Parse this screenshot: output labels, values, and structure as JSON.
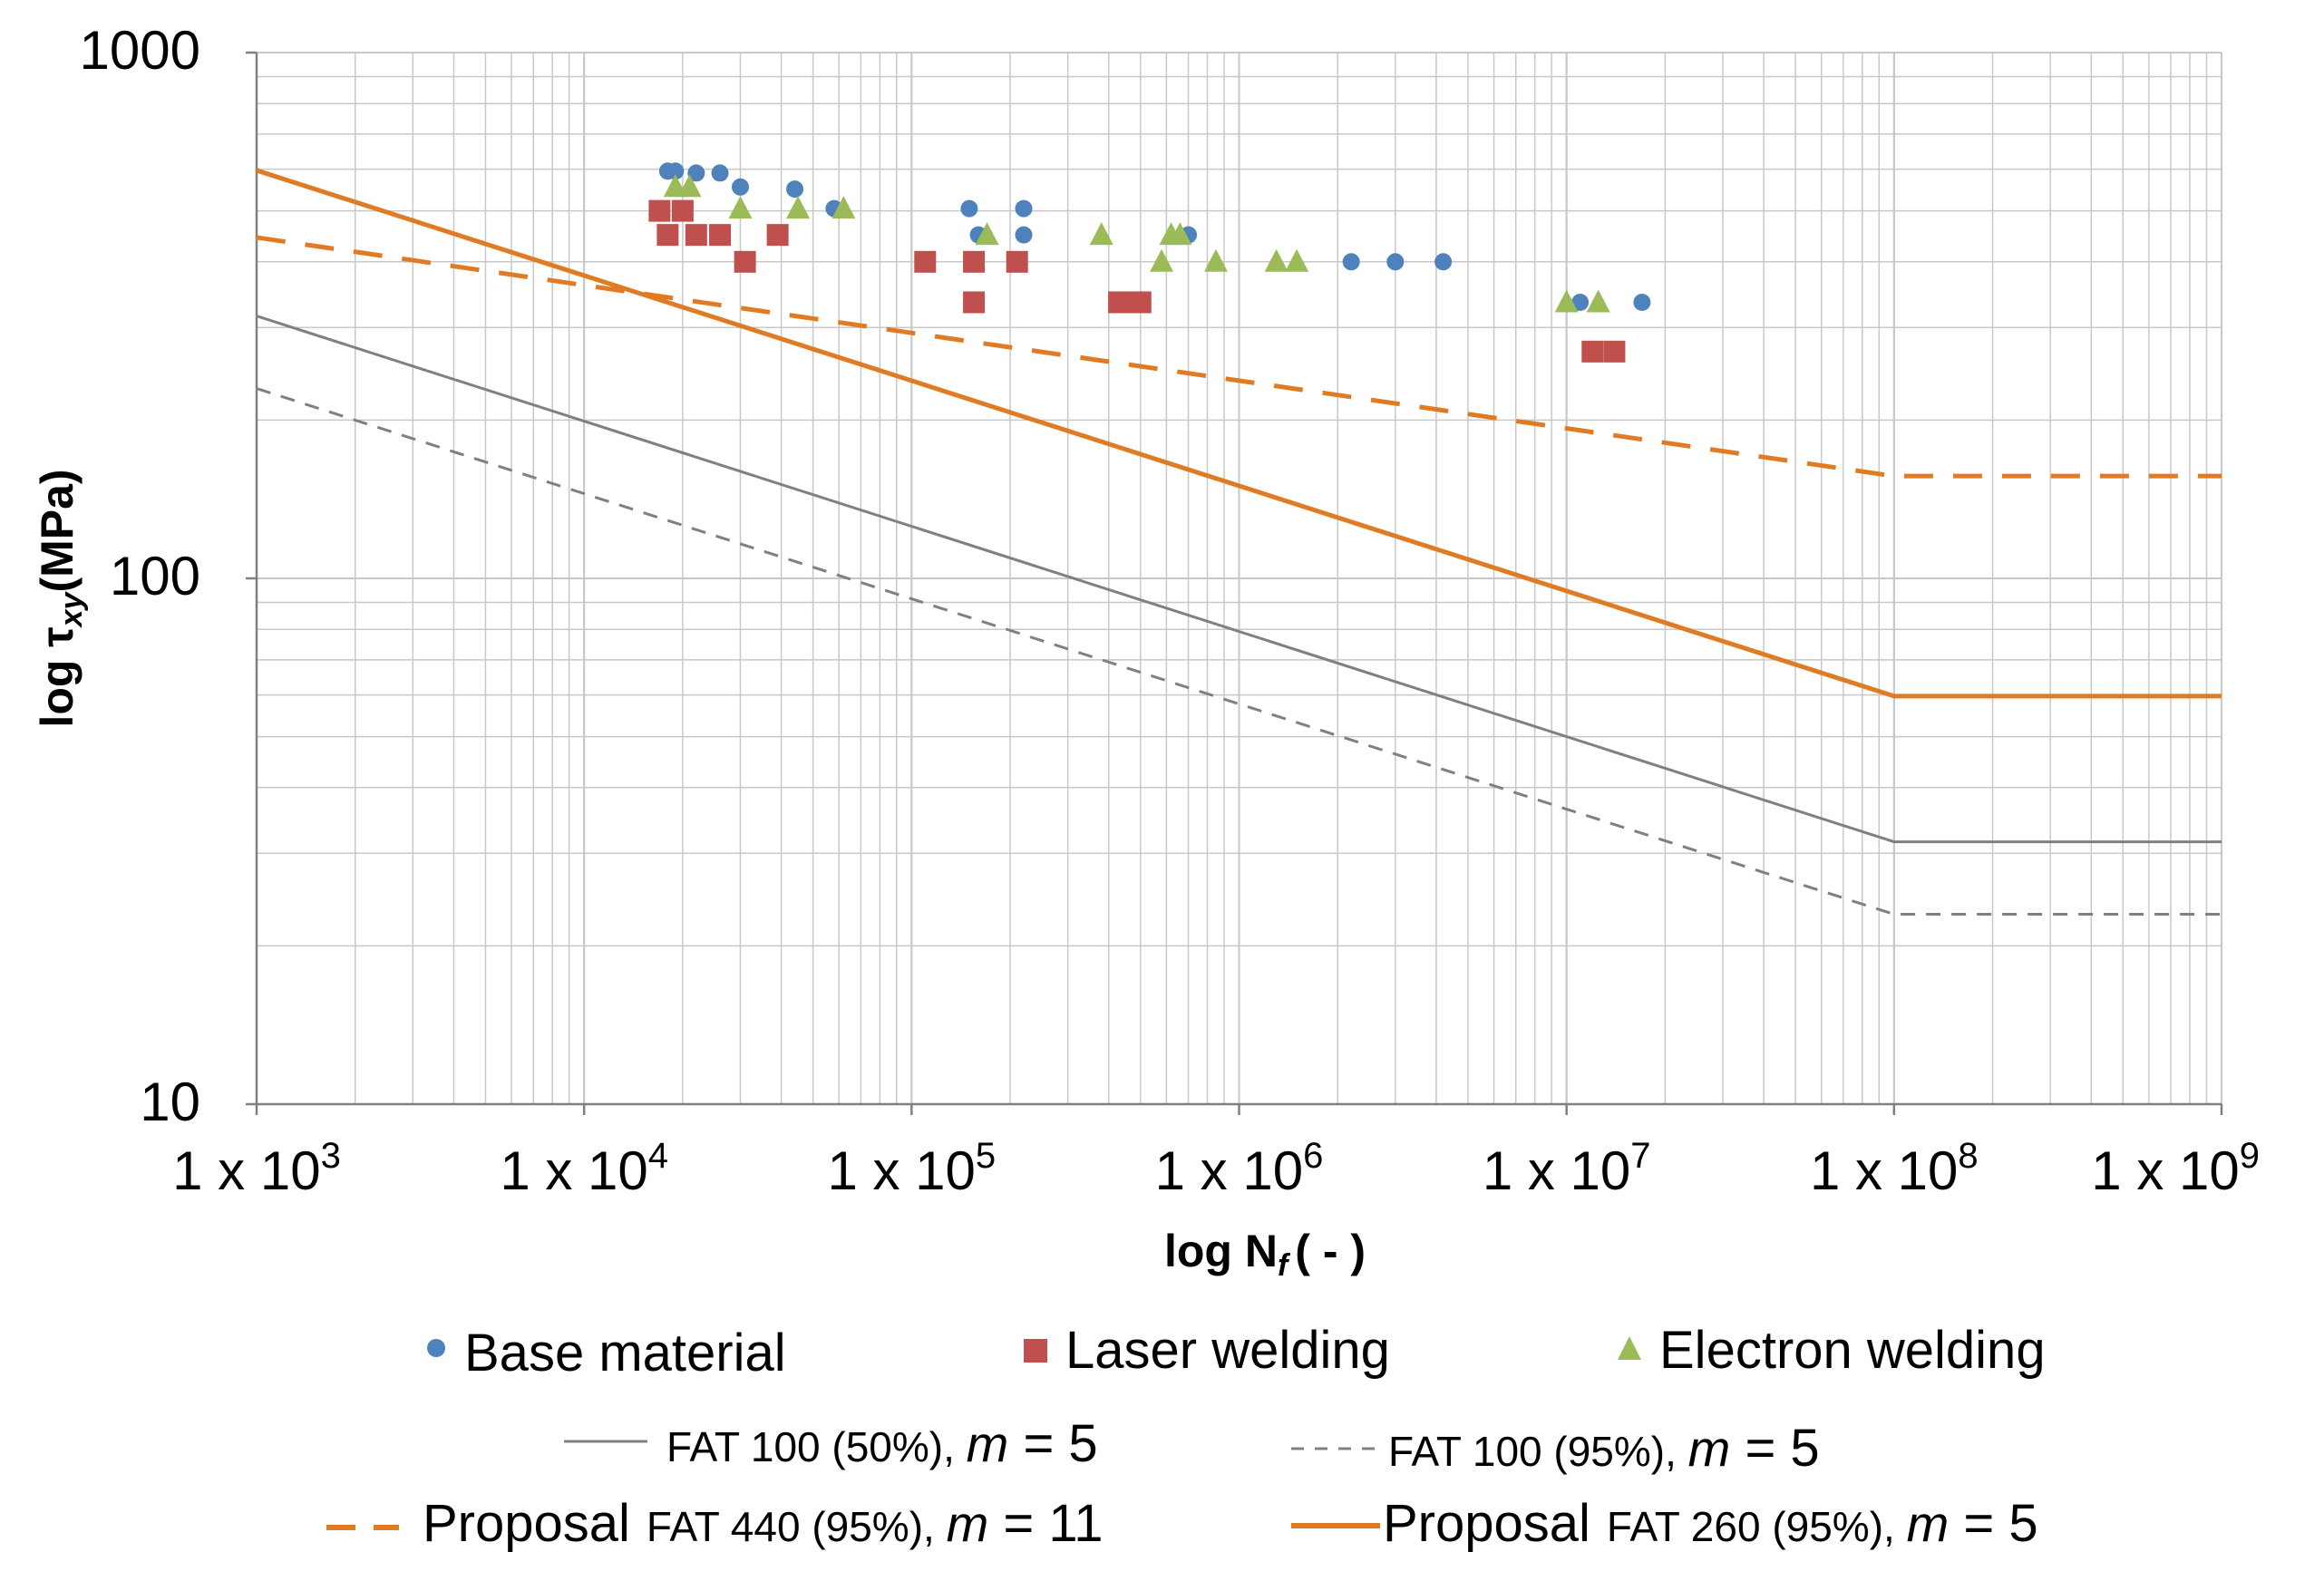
{
  "chart_data": {
    "type": "scatter",
    "xlabel": "log N",
    "xlabel_subscript": "f",
    "xlabel_suffix": "( - )",
    "ylabel": "log τ",
    "ylabel_subscript": "xy",
    "ylabel_suffix": "(MPa)",
    "x_scale": "log",
    "y_scale": "log",
    "xlim": [
      1000,
      1000000000
    ],
    "ylim": [
      10,
      1000
    ],
    "grid": true,
    "x_ticks": [
      {
        "value": 1000,
        "base": "1 x 10",
        "exp": "3"
      },
      {
        "value": 10000,
        "base": "1 x 10",
        "exp": "4"
      },
      {
        "value": 100000,
        "base": "1 x 10",
        "exp": "5"
      },
      {
        "value": 1000000,
        "base": "1 x 10",
        "exp": "6"
      },
      {
        "value": 10000000,
        "base": "1 x 10",
        "exp": "7"
      },
      {
        "value": 100000000,
        "base": "1 x 10",
        "exp": "8"
      },
      {
        "value": 1000000000,
        "base": "1 x 10",
        "exp": "9"
      }
    ],
    "y_ticks": [
      {
        "value": 10,
        "label": "10"
      },
      {
        "value": 100,
        "label": "100"
      },
      {
        "value": 1000,
        "label": "1000"
      }
    ],
    "scatter_series": [
      {
        "name": "Base material",
        "marker": "circle",
        "color": "#4F81BD",
        "points": [
          [
            18000,
            595
          ],
          [
            19000,
            595
          ],
          [
            22000,
            590
          ],
          [
            26000,
            590
          ],
          [
            30000,
            555
          ],
          [
            44000,
            550
          ],
          [
            58000,
            505
          ],
          [
            150000,
            505
          ],
          [
            160000,
            450
          ],
          [
            220000,
            505
          ],
          [
            220000,
            450
          ],
          [
            700000,
            450
          ],
          [
            2200000,
            400
          ],
          [
            3000000,
            400
          ],
          [
            4200000,
            400
          ],
          [
            11000000,
            335
          ],
          [
            17000000,
            335
          ]
        ]
      },
      {
        "name": "Laser welding",
        "marker": "square",
        "color": "#C0504D",
        "points": [
          [
            17000,
            500
          ],
          [
            18000,
            450
          ],
          [
            20000,
            500
          ],
          [
            22000,
            450
          ],
          [
            26000,
            450
          ],
          [
            31000,
            400
          ],
          [
            39000,
            450
          ],
          [
            110000,
            400
          ],
          [
            155000,
            400
          ],
          [
            155000,
            335
          ],
          [
            210000,
            400
          ],
          [
            430000,
            335
          ],
          [
            480000,
            335
          ],
          [
            500000,
            335
          ],
          [
            12000000,
            270
          ],
          [
            14000000,
            270
          ]
        ]
      },
      {
        "name": "Electron welding",
        "marker": "triangle",
        "color": "#9BBB59",
        "points": [
          [
            19000,
            555
          ],
          [
            21000,
            555
          ],
          [
            30000,
            505
          ],
          [
            45000,
            505
          ],
          [
            62000,
            505
          ],
          [
            170000,
            450
          ],
          [
            380000,
            450
          ],
          [
            580000,
            400
          ],
          [
            620000,
            450
          ],
          [
            660000,
            450
          ],
          [
            850000,
            400
          ],
          [
            1300000,
            400
          ],
          [
            1500000,
            400
          ],
          [
            10000000,
            335
          ],
          [
            12500000,
            335
          ]
        ]
      }
    ],
    "line_series": [
      {
        "name": "FAT 100 (50%)",
        "m": "5",
        "color": "#808080",
        "dash": false,
        "points": [
          [
            1000,
            315.5
          ],
          [
            100000000,
            31.55
          ],
          [
            1000000000,
            31.55
          ]
        ]
      },
      {
        "name": "FAT 100 (95%)",
        "m": "5",
        "color": "#808080",
        "dash": true,
        "points": [
          [
            1000,
            229.7
          ],
          [
            100000000,
            22.97
          ],
          [
            1000000000,
            22.97
          ]
        ]
      },
      {
        "name": "Proposal FAT 440 (95%)",
        "m": "11",
        "color": "#E07B24",
        "dash": true,
        "points": [
          [
            1000,
            445
          ],
          [
            100000000,
            156.5
          ],
          [
            1000000000,
            156.5
          ]
        ]
      },
      {
        "name": "Proposal FAT 260 (95%)",
        "m": "5",
        "color": "#E07B24",
        "dash": false,
        "points": [
          [
            1000,
            597
          ],
          [
            100000000,
            59.7
          ],
          [
            1000000000,
            59.7
          ]
        ]
      }
    ]
  },
  "legend": {
    "base_material": "Base material",
    "laser_welding": "Laser welding",
    "electron_welding": "Electron welding",
    "fat100_50_text": "FAT 100 (50%), ",
    "fat100_50_m": "m",
    "fat100_50_eq": " = 5",
    "fat100_95_text": "FAT 100 (95%), ",
    "fat100_95_m": "m",
    "fat100_95_eq": " = 5",
    "proposal_label": "Proposal",
    "fat440_text": "FAT 440 (95%), ",
    "fat440_m": "m",
    "fat440_eq": " = 11",
    "fat260_text": "FAT 260 (95%), ",
    "fat260_m": "m",
    "fat260_eq": " = 5"
  },
  "colors": {
    "grid": "#C8C8C8",
    "axis": "#808080",
    "base": "#4F81BD",
    "laser": "#C0504D",
    "electron": "#9BBB59",
    "orange": "#E07B24",
    "gray": "#808080"
  }
}
